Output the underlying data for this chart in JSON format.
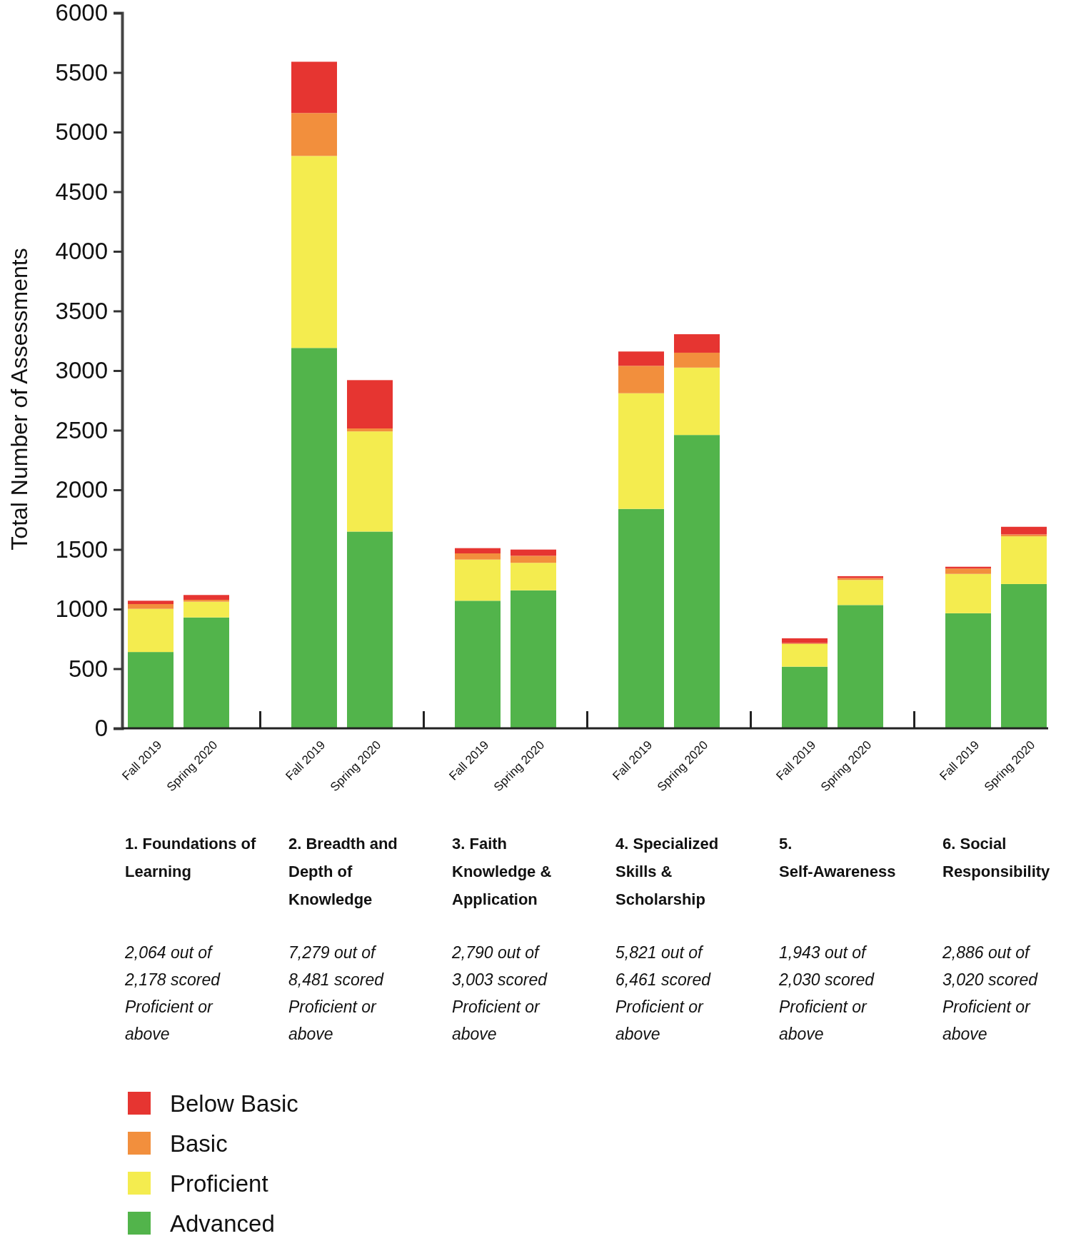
{
  "chart_data": {
    "type": "bar",
    "stacked": true,
    "ylabel": "Total Number of Assessments",
    "categories": [
      "Fall 2019",
      "Spring 2020",
      "Fall 2019",
      "Spring 2020",
      "Fall 2019",
      "Spring 2020",
      "Fall 2019",
      "Spring 2020",
      "Fall 2019",
      "Spring 2020",
      "Fall 2019",
      "Spring 2020"
    ],
    "series": [
      {
        "name": "Advanced",
        "color": "#52b44b",
        "values": [
          640,
          930,
          3190,
          1650,
          1070,
          1157,
          1840,
          2460,
          517,
          1034,
          965,
          1210
        ]
      },
      {
        "name": "Proficient",
        "color": "#f4ec4f",
        "values": [
          362,
          132,
          1610,
          840,
          345,
          231,
          970,
          565,
          190,
          210,
          330,
          400
        ]
      },
      {
        "name": "Basic",
        "color": "#f28f3d",
        "values": [
          40,
          16,
          360,
          25,
          52,
          59,
          230,
          125,
          8,
          16,
          45,
          16
        ]
      },
      {
        "name": "Below Basic",
        "color": "#e63531",
        "values": [
          28,
          40,
          430,
          405,
          44,
          52,
          120,
          155,
          40,
          16,
          15,
          64
        ]
      }
    ],
    "ylim": [
      0,
      6000
    ],
    "yticks": [
      0,
      500,
      1000,
      1500,
      2000,
      2500,
      3000,
      3500,
      4000,
      4500,
      5000,
      5500,
      6000
    ],
    "grid": false,
    "legend": "bottom left",
    "annotations": [
      "1. Foundations of Learning",
      "2,064 out of 2,178 scored Proficient or above",
      "2. Breadth and Depth of Knowledge",
      "7,279 out of 8,481 scored Proficient or above",
      "3. Faith Knowledge & Application",
      "2,790 out of 3,003 scored Proficient or above",
      "4. Specialized Skills & Scholarship",
      "5,821 out of 6,461 scored Proficient or above",
      "5. Self-Awareness",
      "1,943 out of 2,030 scored Proficient or above",
      "6. Social Responsibility",
      "2,886 out of 3,020 scored Proficient or above"
    ]
  }
}
